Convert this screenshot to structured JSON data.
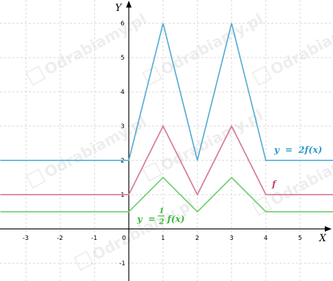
{
  "chart_data": {
    "type": "line",
    "title": "",
    "xlabel": "X",
    "ylabel": "Y",
    "xlim": [
      -3.75,
      6.0
    ],
    "ylim": [
      -1.5,
      6.6
    ],
    "grid": true,
    "x_ticks": [
      -3,
      -2,
      -1,
      0,
      1,
      2,
      3,
      4,
      5
    ],
    "x_tick_labels": [
      "-3",
      "-2",
      "-1",
      "0",
      "1",
      "2",
      "3",
      "4",
      "5"
    ],
    "y_ticks": [
      -1,
      1,
      2,
      3,
      4,
      5,
      6
    ],
    "y_tick_labels": [
      "-1",
      "1",
      "2",
      "3",
      "4",
      "5",
      "6"
    ],
    "series": [
      {
        "key": "two_f",
        "color": "#5aaed4",
        "points": [
          [
            -3.75,
            2
          ],
          [
            0,
            2
          ],
          [
            1,
            6
          ],
          [
            2,
            2
          ],
          [
            3,
            6
          ],
          [
            4,
            2
          ],
          [
            6,
            2
          ]
        ]
      },
      {
        "key": "f",
        "color": "#d67a98",
        "points": [
          [
            -3.75,
            1
          ],
          [
            0,
            1
          ],
          [
            1,
            3
          ],
          [
            2,
            1
          ],
          [
            3,
            3
          ],
          [
            4,
            1
          ],
          [
            6,
            1
          ]
        ]
      },
      {
        "key": "half_f",
        "color": "#6fcf6f",
        "points": [
          [
            -3.75,
            0.5
          ],
          [
            0,
            0.5
          ],
          [
            1,
            1.5
          ],
          [
            2,
            0.5
          ],
          [
            3,
            1.5
          ],
          [
            4,
            0.5
          ],
          [
            6,
            0.5
          ]
        ]
      }
    ],
    "annotations": {
      "two_f": {
        "prefix": "y",
        "equals": "=",
        "body": "2f(x)",
        "color": "#2f9ac8"
      },
      "f": {
        "text": "f",
        "color": "#c9426f"
      },
      "half_f": {
        "prefix": "y",
        "equals": "=",
        "frac_num": "1",
        "frac_den": "2",
        "body": "f(x)",
        "color": "#3fb83f"
      }
    }
  },
  "watermark": {
    "text": "Odrabiamy",
    "suffix": ".pl",
    "icon": "pencil-logo-icon"
  }
}
